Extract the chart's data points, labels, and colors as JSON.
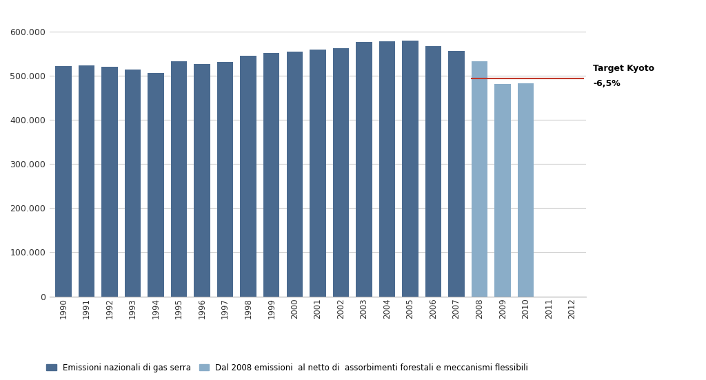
{
  "years": [
    1990,
    1991,
    1992,
    1993,
    1994,
    1995,
    1996,
    1997,
    1998,
    1999,
    2000,
    2001,
    2002,
    2003,
    2004,
    2005,
    2006,
    2007,
    2008,
    2009,
    2010,
    2011,
    2012
  ],
  "dark_blue_values": [
    522000,
    524000,
    520000,
    514000,
    507000,
    533000,
    526000,
    531000,
    545000,
    552000,
    554000,
    560000,
    562000,
    577000,
    578000,
    579000,
    567000,
    557000,
    null,
    null,
    null,
    null,
    null
  ],
  "light_blue_values": [
    null,
    null,
    null,
    null,
    null,
    null,
    null,
    null,
    null,
    null,
    null,
    null,
    null,
    null,
    null,
    null,
    null,
    null,
    533000,
    482000,
    483000,
    null,
    null
  ],
  "kyoto_target": 493600,
  "dark_blue_color": "#4a6a8f",
  "light_blue_color": "#8aadc8",
  "kyoto_line_color": "#c0392b",
  "kyoto_label": "Target Kyoto",
  "kyoto_pct_label": "-6,5%",
  "legend_dark": "Emissioni nazionali di gas serra",
  "legend_light": "Dal 2008 emissioni  al netto di  assorbimenti forestali e meccanismi flessibili",
  "ylim": [
    0,
    620000
  ],
  "ytick_values": [
    0,
    100000,
    200000,
    300000,
    400000,
    500000,
    600000
  ],
  "ytick_labels": [
    "0",
    "100.000",
    "200.000",
    "300.000",
    "400.000",
    "500.000",
    "600.000"
  ],
  "background_color": "#ffffff",
  "grid_color": "#cccccc",
  "xlim_left": -0.6,
  "xlim_right": 24.5
}
